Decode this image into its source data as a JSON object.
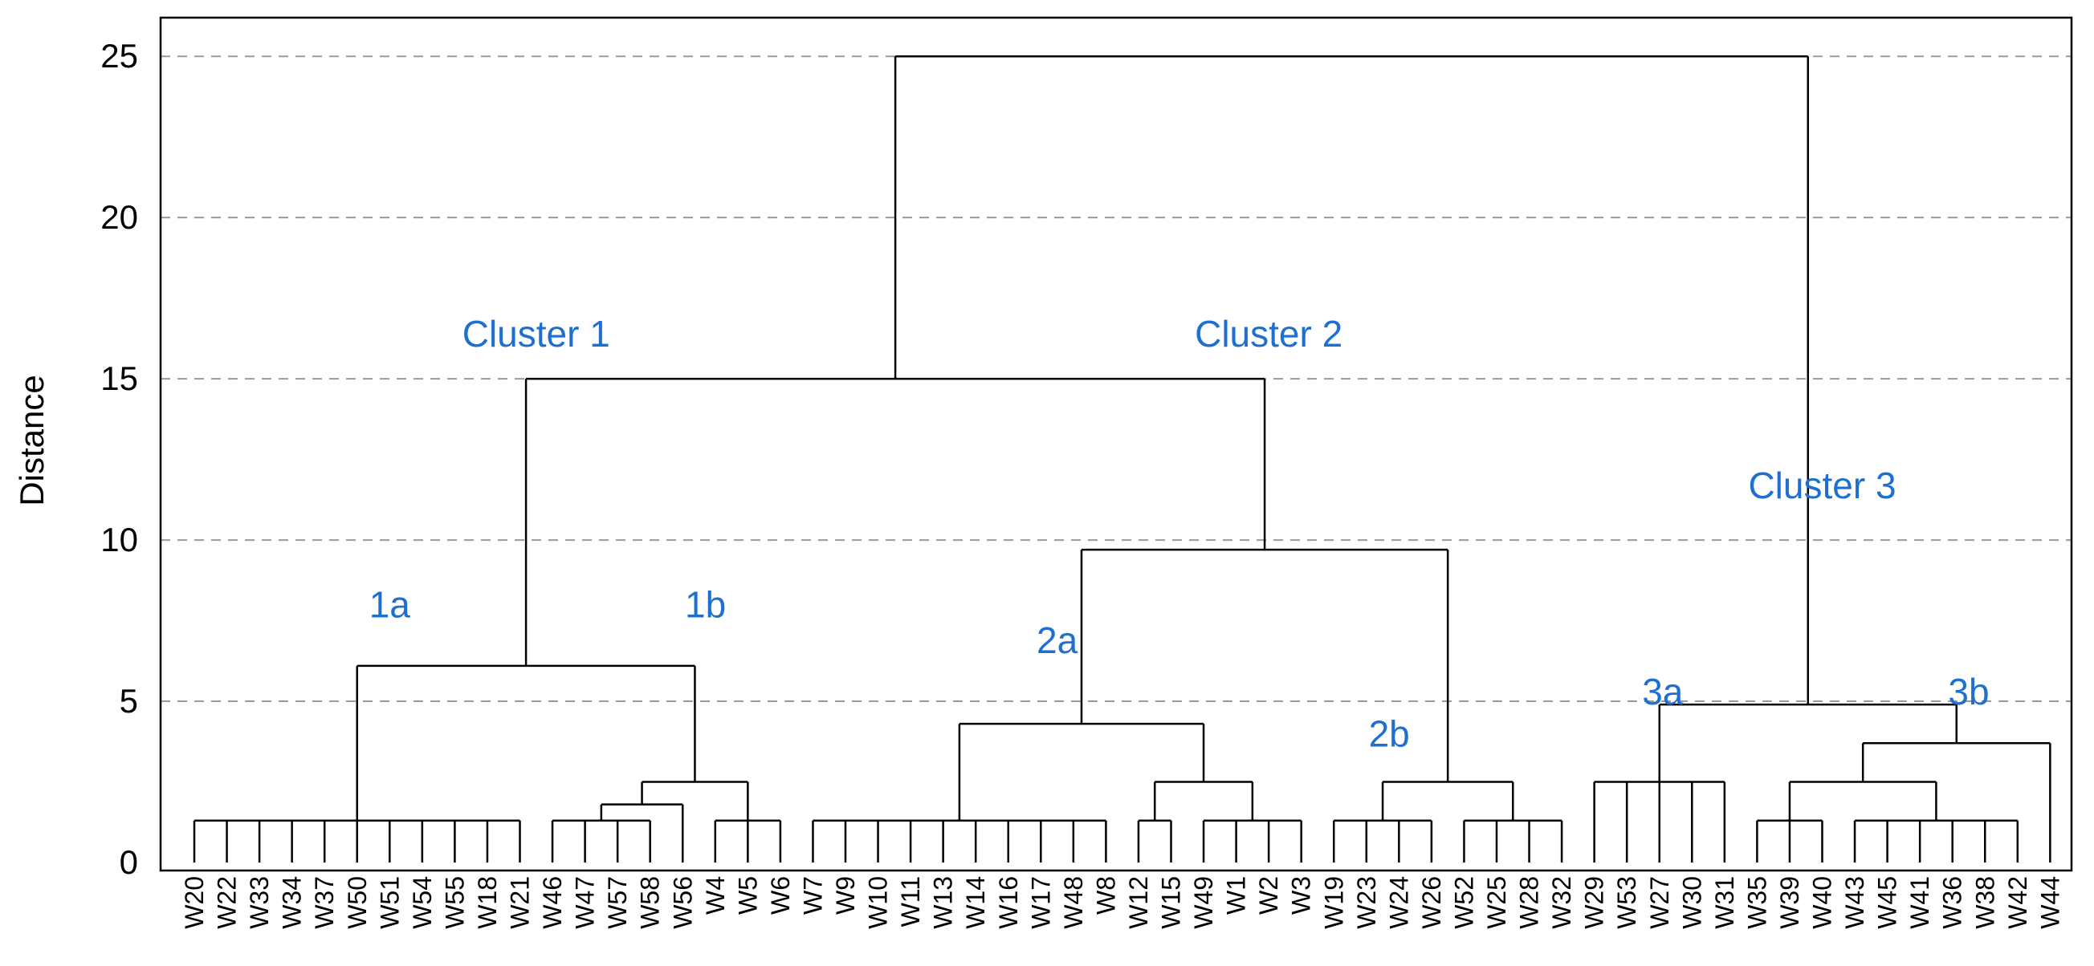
{
  "chart_data": {
    "type": "dendrogram",
    "ylabel": "Distance",
    "ylim": [
      0,
      26.2
    ],
    "yticks": [
      0,
      5,
      10,
      15,
      20,
      25
    ],
    "grid": "horizontal dashed",
    "colors": {
      "annotation": "#1F6FD1",
      "lines": "#000000",
      "grid": "#9a9a9a"
    },
    "leaves": [
      "W20",
      "W22",
      "W33",
      "W34",
      "W37",
      "W50",
      "W51",
      "W54",
      "W55",
      "W18",
      "W21",
      "W46",
      "W47",
      "W57",
      "W58",
      "W56",
      "W4",
      "W5",
      "W6",
      "W7",
      "W9",
      "W10",
      "W11",
      "W13",
      "W14",
      "W16",
      "W17",
      "W48",
      "W8",
      "W12",
      "W15",
      "W49",
      "W1",
      "W2",
      "W3",
      "W19",
      "W23",
      "W24",
      "W26",
      "W52",
      "W25",
      "W28",
      "W32",
      "W29",
      "W53",
      "W27",
      "W30",
      "W31",
      "W35",
      "W39",
      "W40",
      "W43",
      "W45",
      "W41",
      "W36",
      "W38",
      "W42",
      "W44"
    ],
    "merges": [
      {
        "members": [
          0,
          1,
          2,
          3,
          4,
          5,
          6,
          7,
          8,
          9,
          10
        ],
        "height": 1.3
      },
      {
        "members": [
          11,
          12,
          13,
          14
        ],
        "height": 1.3
      },
      {
        "members": [
          16,
          17,
          18
        ],
        "height": 1.3
      },
      {
        "members": [
          19,
          20,
          21,
          22,
          23,
          24,
          25,
          26,
          27,
          28
        ],
        "height": 1.3
      },
      {
        "members": [
          29,
          30
        ],
        "height": 1.3
      },
      {
        "members": [
          31,
          32,
          33,
          34
        ],
        "height": 1.3
      },
      {
        "members": [
          35,
          36,
          37,
          38
        ],
        "height": 1.3
      },
      {
        "members": [
          39,
          40,
          41,
          42
        ],
        "height": 1.3
      },
      {
        "members": [
          48,
          49,
          50
        ],
        "height": 1.3
      },
      {
        "members": [
          51,
          52,
          53,
          54,
          55,
          56
        ],
        "height": 1.3
      },
      {
        "members": [
          43,
          44,
          45,
          46,
          47
        ],
        "height": 2.5
      },
      {
        "children": [
          {
            "leaf": 15
          },
          {
            "merge": 1
          }
        ],
        "height": 1.8
      },
      {
        "children": [
          {
            "merge": 11
          },
          {
            "merge": 2
          }
        ],
        "height": 2.5
      },
      {
        "children": [
          {
            "merge": 0
          },
          {
            "merge": 12
          }
        ],
        "height": 6.1
      },
      {
        "children": [
          {
            "merge": 4
          },
          {
            "merge": 5
          }
        ],
        "height": 2.5
      },
      {
        "children": [
          {
            "merge": 3
          },
          {
            "merge": 14
          }
        ],
        "height": 4.3
      },
      {
        "children": [
          {
            "merge": 6
          },
          {
            "merge": 7
          }
        ],
        "height": 2.5
      },
      {
        "children": [
          {
            "merge": 15
          },
          {
            "merge": 16
          }
        ],
        "height": 9.7
      },
      {
        "children": [
          {
            "merge": 13
          },
          {
            "merge": 17
          }
        ],
        "height": 15.0
      },
      {
        "children": [
          {
            "merge": 8
          },
          {
            "merge": 9
          }
        ],
        "height": 2.5
      },
      {
        "children": [
          {
            "merge": 19
          },
          {
            "leaf": 57
          }
        ],
        "height": 3.7
      },
      {
        "children": [
          {
            "merge": 10
          },
          {
            "merge": 20
          }
        ],
        "height": 4.9
      },
      {
        "children": [
          {
            "merge": 18
          },
          {
            "merge": 21
          }
        ],
        "height": 25.0
      }
    ],
    "annotations": [
      {
        "text": "Cluster 1",
        "x": 10.5,
        "y": 16.0
      },
      {
        "text": "Cluster 2",
        "x": 33.0,
        "y": 16.0
      },
      {
        "text": "Cluster 3",
        "x": 50.0,
        "y": 11.3
      },
      {
        "text": "1a",
        "x": 6.0,
        "y": 7.6
      },
      {
        "text": "1b",
        "x": 15.7,
        "y": 7.6
      },
      {
        "text": "2a",
        "x": 26.5,
        "y": 6.5
      },
      {
        "text": "2b",
        "x": 36.7,
        "y": 3.6
      },
      {
        "text": "3a",
        "x": 45.1,
        "y": 4.9
      },
      {
        "text": "3b",
        "x": 54.5,
        "y": 4.9
      }
    ]
  }
}
